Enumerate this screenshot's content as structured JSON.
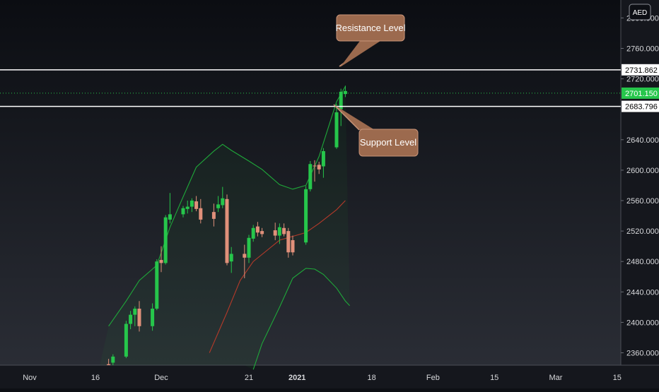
{
  "currency_badge": "AED",
  "colors": {
    "background_top": "#0b0d12",
    "background_bottom": "#2a2d35",
    "up": "#26c64b",
    "down": "#e0907a",
    "band": "#1fa83a",
    "mid": "#b33a2a",
    "callout": "#9c6a4e",
    "callout_border": "#c99478",
    "last_price": "#26c64b"
  },
  "callouts": {
    "resistance": "Resistance Level",
    "support": "Support Level"
  },
  "chart_data": {
    "type": "candlestick",
    "title": "",
    "xlabel": "",
    "ylabel": "",
    "ylim": [
      2335,
      2805
    ],
    "grid": false,
    "x_ticks": [
      {
        "label": "Nov",
        "date": "2020-11-01"
      },
      {
        "label": "16",
        "date": "2020-11-16"
      },
      {
        "label": "Dec",
        "date": "2020-12-01"
      },
      {
        "label": "21",
        "date": "2020-12-21"
      },
      {
        "label": "2021",
        "date": "2021-01-01",
        "bold": true
      },
      {
        "label": "18",
        "date": "2021-01-18"
      },
      {
        "label": "Feb",
        "date": "2021-02-01"
      },
      {
        "label": "15",
        "date": "2021-02-15"
      },
      {
        "label": "Mar",
        "date": "2021-03-01"
      },
      {
        "label": "15",
        "date": "2021-03-15"
      }
    ],
    "y_ticks": [
      "2360.000",
      "2400.000",
      "2440.000",
      "2480.000",
      "2520.000",
      "2560.000",
      "2600.000",
      "2640.000",
      "2720.000",
      "2760.000",
      "2800.000"
    ],
    "levels": {
      "resistance": {
        "value": 2731.862,
        "label": "2731.862"
      },
      "support": {
        "value": 2683.796,
        "label": "2683.796"
      },
      "last_price": {
        "value": 2701.15,
        "label": "2701.150"
      }
    },
    "candles": [
      {
        "date": "2020-11-19",
        "o": 2345,
        "h": 2352,
        "l": 2333,
        "c": 2340
      },
      {
        "date": "2020-11-20",
        "o": 2347,
        "h": 2358,
        "l": 2340,
        "c": 2355
      },
      {
        "date": "2020-11-23",
        "o": 2355,
        "h": 2402,
        "l": 2353,
        "c": 2398
      },
      {
        "date": "2020-11-24",
        "o": 2398,
        "h": 2415,
        "l": 2391,
        "c": 2410
      },
      {
        "date": "2020-11-25",
        "o": 2410,
        "h": 2421,
        "l": 2395,
        "c": 2418
      },
      {
        "date": "2020-11-26",
        "o": 2418,
        "h": 2428,
        "l": 2388,
        "c": 2395
      },
      {
        "date": "2020-11-29",
        "o": 2395,
        "h": 2425,
        "l": 2389,
        "c": 2418
      },
      {
        "date": "2020-11-30",
        "o": 2418,
        "h": 2483,
        "l": 2416,
        "c": 2480
      },
      {
        "date": "2020-12-01",
        "o": 2482,
        "h": 2500,
        "l": 2466,
        "c": 2478
      },
      {
        "date": "2020-12-02",
        "o": 2478,
        "h": 2541,
        "l": 2476,
        "c": 2538
      },
      {
        "date": "2020-12-03",
        "o": 2535,
        "h": 2570,
        "l": 2530,
        "c": 2542
      },
      {
        "date": "2020-12-06",
        "o": 2542,
        "h": 2553,
        "l": 2538,
        "c": 2550
      },
      {
        "date": "2020-12-07",
        "o": 2549,
        "h": 2560,
        "l": 2543,
        "c": 2552
      },
      {
        "date": "2020-12-08",
        "o": 2552,
        "h": 2563,
        "l": 2545,
        "c": 2560
      },
      {
        "date": "2020-12-09",
        "o": 2559,
        "h": 2566,
        "l": 2546,
        "c": 2549
      },
      {
        "date": "2020-12-10",
        "o": 2550,
        "h": 2562,
        "l": 2530,
        "c": 2535
      },
      {
        "date": "2020-12-13",
        "o": 2545,
        "h": 2556,
        "l": 2526,
        "c": 2536
      },
      {
        "date": "2020-12-14",
        "o": 2550,
        "h": 2566,
        "l": 2545,
        "c": 2555
      },
      {
        "date": "2020-12-15",
        "o": 2554,
        "h": 2578,
        "l": 2550,
        "c": 2563
      },
      {
        "date": "2020-12-16",
        "o": 2562,
        "h": 2568,
        "l": 2475,
        "c": 2478
      },
      {
        "date": "2020-12-17",
        "o": 2480,
        "h": 2499,
        "l": 2465,
        "c": 2490
      },
      {
        "date": "2020-12-20",
        "o": 2490,
        "h": 2502,
        "l": 2458,
        "c": 2485
      },
      {
        "date": "2020-12-21",
        "o": 2485,
        "h": 2515,
        "l": 2478,
        "c": 2511
      },
      {
        "date": "2020-12-22",
        "o": 2510,
        "h": 2528,
        "l": 2506,
        "c": 2524
      },
      {
        "date": "2020-12-23",
        "o": 2526,
        "h": 2532,
        "l": 2513,
        "c": 2518
      },
      {
        "date": "2020-12-24",
        "o": 2520,
        "h": 2524,
        "l": 2512,
        "c": 2516
      },
      {
        "date": "2020-12-27",
        "o": 2521,
        "h": 2531,
        "l": 2508,
        "c": 2514
      },
      {
        "date": "2020-12-28",
        "o": 2514,
        "h": 2530,
        "l": 2503,
        "c": 2525
      },
      {
        "date": "2020-12-29",
        "o": 2524,
        "h": 2530,
        "l": 2513,
        "c": 2516
      },
      {
        "date": "2020-12-30",
        "o": 2520,
        "h": 2524,
        "l": 2485,
        "c": 2492
      },
      {
        "date": "2020-12-31",
        "o": 2508,
        "h": 2514,
        "l": 2488,
        "c": 2492
      },
      {
        "date": "2021-01-03",
        "o": 2505,
        "h": 2579,
        "l": 2502,
        "c": 2575
      },
      {
        "date": "2021-01-04",
        "o": 2575,
        "h": 2612,
        "l": 2572,
        "c": 2608
      },
      {
        "date": "2021-01-05",
        "o": 2606,
        "h": 2613,
        "l": 2585,
        "c": 2605
      },
      {
        "date": "2021-01-06",
        "o": 2607,
        "h": 2611,
        "l": 2595,
        "c": 2601
      },
      {
        "date": "2021-01-07",
        "o": 2605,
        "h": 2629,
        "l": 2590,
        "c": 2625
      },
      {
        "date": "2021-01-10",
        "o": 2630,
        "h": 2687,
        "l": 2628,
        "c": 2676
      },
      {
        "date": "2021-01-11",
        "o": 2680,
        "h": 2707,
        "l": 2658,
        "c": 2703
      },
      {
        "date": "2021-01-12",
        "o": 2700,
        "h": 2711,
        "l": 2696,
        "c": 2704
      }
    ],
    "bollinger": {
      "upper": [
        {
          "date": "2020-11-19",
          "v": 2395
        },
        {
          "date": "2020-11-23",
          "v": 2428
        },
        {
          "date": "2020-11-26",
          "v": 2455
        },
        {
          "date": "2020-11-30",
          "v": 2475
        },
        {
          "date": "2020-12-03",
          "v": 2525
        },
        {
          "date": "2020-12-06",
          "v": 2565
        },
        {
          "date": "2020-12-09",
          "v": 2604
        },
        {
          "date": "2020-12-13",
          "v": 2625
        },
        {
          "date": "2020-12-15",
          "v": 2634
        },
        {
          "date": "2020-12-17",
          "v": 2626
        },
        {
          "date": "2020-12-21",
          "v": 2612
        },
        {
          "date": "2020-12-24",
          "v": 2601
        },
        {
          "date": "2020-12-28",
          "v": 2581
        },
        {
          "date": "2020-12-31",
          "v": 2575
        },
        {
          "date": "2021-01-03",
          "v": 2580
        },
        {
          "date": "2021-01-06",
          "v": 2618
        },
        {
          "date": "2021-01-10",
          "v": 2690
        },
        {
          "date": "2021-01-12",
          "v": 2710
        }
      ],
      "middle": [
        {
          "date": "2020-12-12",
          "v": 2360
        },
        {
          "date": "2020-12-16",
          "v": 2413
        },
        {
          "date": "2020-12-19",
          "v": 2455
        },
        {
          "date": "2020-12-22",
          "v": 2480
        },
        {
          "date": "2020-12-28",
          "v": 2508
        },
        {
          "date": "2021-01-03",
          "v": 2518
        },
        {
          "date": "2021-01-06",
          "v": 2530
        },
        {
          "date": "2021-01-10",
          "v": 2548
        },
        {
          "date": "2021-01-12",
          "v": 2560
        }
      ],
      "lower": [
        {
          "date": "2020-12-22",
          "v": 2338
        },
        {
          "date": "2020-12-24",
          "v": 2372
        },
        {
          "date": "2020-12-28",
          "v": 2420
        },
        {
          "date": "2020-12-31",
          "v": 2458
        },
        {
          "date": "2021-01-03",
          "v": 2471
        },
        {
          "date": "2021-01-05",
          "v": 2470
        },
        {
          "date": "2021-01-07",
          "v": 2463
        },
        {
          "date": "2021-01-10",
          "v": 2445
        },
        {
          "date": "2021-01-12",
          "v": 2428
        },
        {
          "date": "2021-01-13",
          "v": 2422
        }
      ]
    }
  }
}
